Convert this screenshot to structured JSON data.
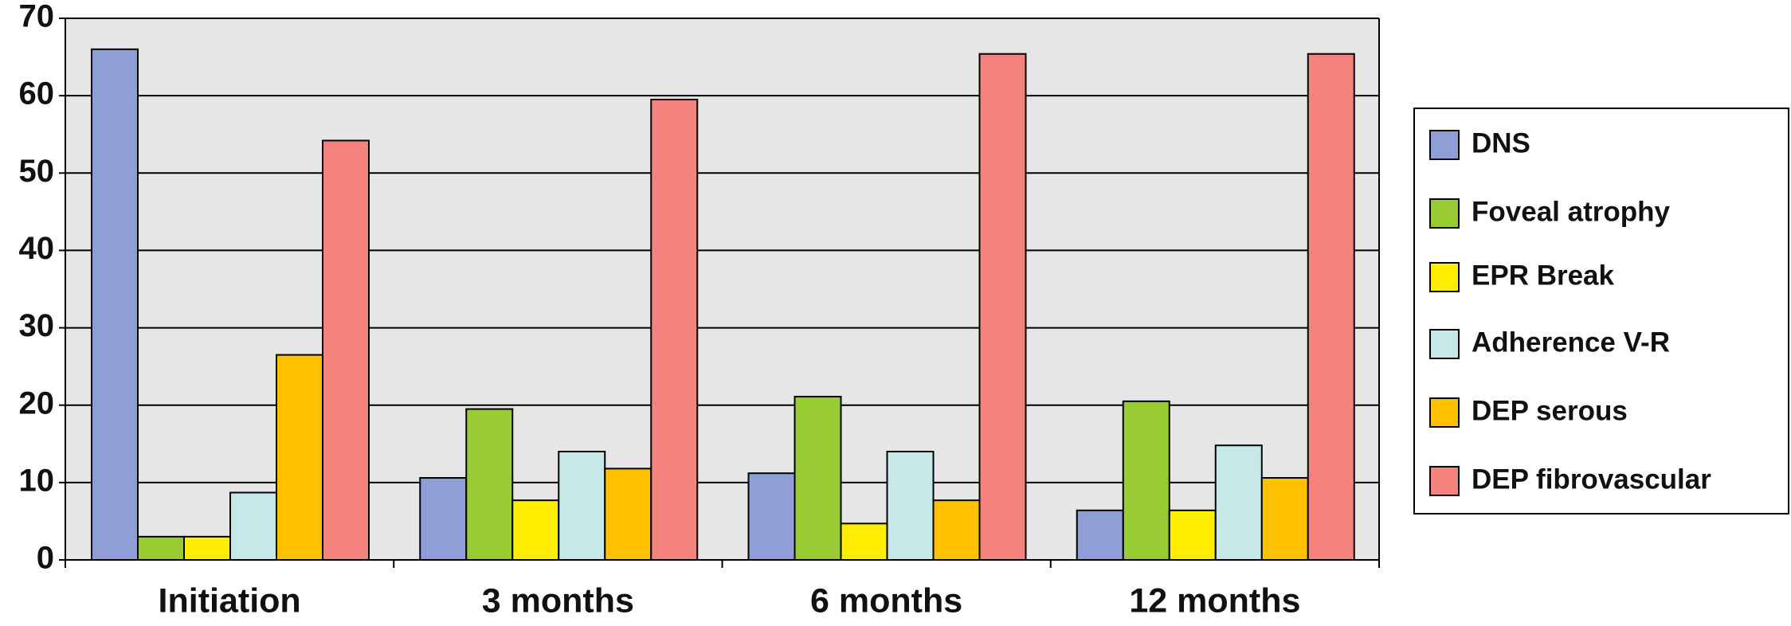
{
  "chart_data": {
    "type": "bar",
    "categories": [
      "Initiation",
      "3 months",
      "6 months",
      "12 months"
    ],
    "series": [
      {
        "name": "DNS",
        "color": "#8f9fd6",
        "values": [
          66,
          10.6,
          11.2,
          6.4
        ]
      },
      {
        "name": "Foveal atrophy",
        "color": "#99cc33",
        "values": [
          3,
          19.5,
          21.1,
          20.5
        ]
      },
      {
        "name": "EPR Break",
        "color": "#ffee00",
        "values": [
          3,
          7.7,
          4.7,
          6.4
        ]
      },
      {
        "name": "Adherence V-R",
        "color": "#c7e8e8",
        "values": [
          8.7,
          14,
          14,
          14.8
        ]
      },
      {
        "name": "DEP serous",
        "color": "#ffc000",
        "values": [
          26.5,
          11.8,
          7.7,
          10.6
        ]
      },
      {
        "name": "DEP fibrovascular",
        "color": "#f4837d",
        "values": [
          54.2,
          59.5,
          65.4,
          65.4
        ]
      }
    ],
    "ylim": [
      0,
      70
    ],
    "yticks": [
      0,
      10,
      20,
      30,
      40,
      50,
      60,
      70
    ],
    "grid": true,
    "legend": "right"
  }
}
